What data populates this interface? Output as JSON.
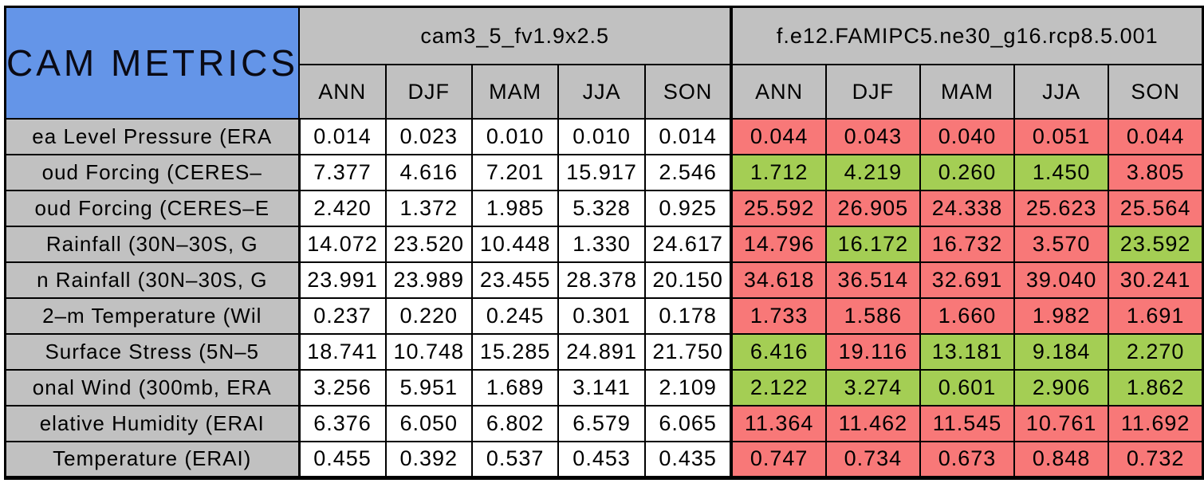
{
  "colors": {
    "title_blue": "#6495E8",
    "header_gray": "#C1C1C1",
    "worse_red": "#F87878",
    "better_green": "#A4CE54",
    "control_white": "#FFFFFF",
    "border_black": "#000000"
  },
  "chart_data": {
    "type": "table",
    "title": "CAM METRICS",
    "column_groups": [
      "cam3_5_fv1.9x2.5",
      "f.e12.FAMIPC5.ne30_g16.rcp8.5.001"
    ],
    "seasons": [
      "ANN",
      "DJF",
      "MAM",
      "JJA",
      "SON"
    ],
    "legend": {
      "worse": "red",
      "better": "green",
      "control": "white"
    },
    "rows": [
      {
        "label": "ea Level Pressure (ERA",
        "control": [
          "0.014",
          "0.023",
          "0.010",
          "0.010",
          "0.014"
        ],
        "test": [
          "0.044",
          "0.043",
          "0.040",
          "0.051",
          "0.044"
        ],
        "test_status": [
          "worse",
          "worse",
          "worse",
          "worse",
          "worse"
        ]
      },
      {
        "label": "oud Forcing (CERES–",
        "control": [
          "7.377",
          "4.616",
          "7.201",
          "15.917",
          "2.546"
        ],
        "test": [
          "1.712",
          "4.219",
          "0.260",
          "1.450",
          "3.805"
        ],
        "test_status": [
          "better",
          "better",
          "better",
          "better",
          "worse"
        ]
      },
      {
        "label": "oud Forcing (CERES–E",
        "control": [
          "2.420",
          "1.372",
          "1.985",
          "5.328",
          "0.925"
        ],
        "test": [
          "25.592",
          "26.905",
          "24.338",
          "25.623",
          "25.564"
        ],
        "test_status": [
          "worse",
          "worse",
          "worse",
          "worse",
          "worse"
        ]
      },
      {
        "label": "Rainfall (30N–30S, G",
        "control": [
          "14.072",
          "23.520",
          "10.448",
          "1.330",
          "24.617"
        ],
        "test": [
          "14.796",
          "16.172",
          "16.732",
          "3.570",
          "23.592"
        ],
        "test_status": [
          "worse",
          "better",
          "worse",
          "worse",
          "better"
        ]
      },
      {
        "label": "n Rainfall (30N–30S, G",
        "control": [
          "23.991",
          "23.989",
          "23.455",
          "28.378",
          "20.150"
        ],
        "test": [
          "34.618",
          "36.514",
          "32.691",
          "39.040",
          "30.241"
        ],
        "test_status": [
          "worse",
          "worse",
          "worse",
          "worse",
          "worse"
        ]
      },
      {
        "label": "2–m Temperature (Wil",
        "control": [
          "0.237",
          "0.220",
          "0.245",
          "0.301",
          "0.178"
        ],
        "test": [
          "1.733",
          "1.586",
          "1.660",
          "1.982",
          "1.691"
        ],
        "test_status": [
          "worse",
          "worse",
          "worse",
          "worse",
          "worse"
        ]
      },
      {
        "label": "Surface Stress (5N–5",
        "control": [
          "18.741",
          "10.748",
          "15.285",
          "24.891",
          "21.750"
        ],
        "test": [
          "6.416",
          "19.116",
          "13.181",
          "9.184",
          "2.270"
        ],
        "test_status": [
          "better",
          "worse",
          "better",
          "better",
          "better"
        ]
      },
      {
        "label": "onal Wind (300mb, ERA",
        "control": [
          "3.256",
          "5.951",
          "1.689",
          "3.141",
          "2.109"
        ],
        "test": [
          "2.122",
          "3.274",
          "0.601",
          "2.906",
          "1.862"
        ],
        "test_status": [
          "better",
          "better",
          "better",
          "better",
          "better"
        ]
      },
      {
        "label": "elative Humidity (ERAI",
        "control": [
          "6.376",
          "6.050",
          "6.802",
          "6.579",
          "6.065"
        ],
        "test": [
          "11.364",
          "11.462",
          "11.545",
          "10.761",
          "11.692"
        ],
        "test_status": [
          "worse",
          "worse",
          "worse",
          "worse",
          "worse"
        ]
      },
      {
        "label": "Temperature (ERAI)",
        "control": [
          "0.455",
          "0.392",
          "0.537",
          "0.453",
          "0.435"
        ],
        "test": [
          "0.747",
          "0.734",
          "0.673",
          "0.848",
          "0.732"
        ],
        "test_status": [
          "worse",
          "worse",
          "worse",
          "worse",
          "worse"
        ]
      }
    ]
  }
}
